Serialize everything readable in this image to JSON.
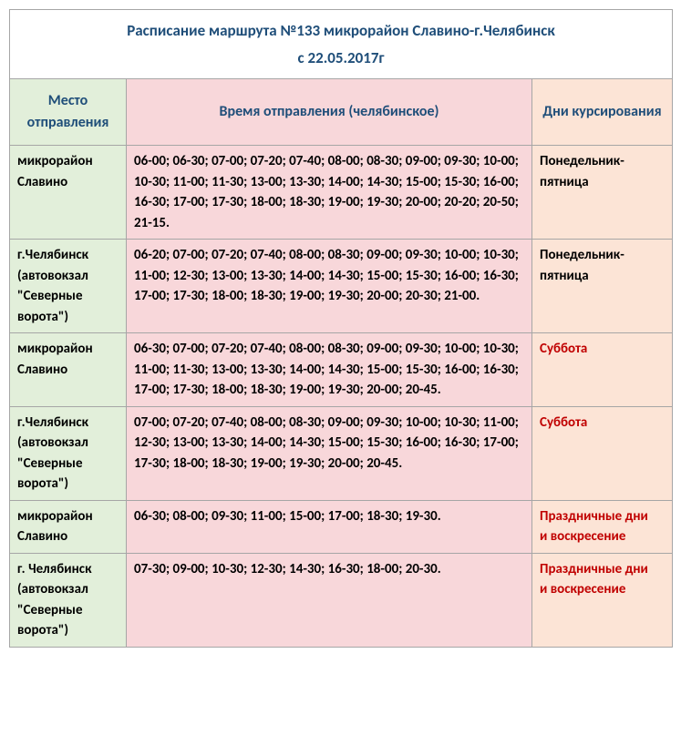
{
  "title": "Расписание маршрута №133 микрорайон Славино-г.Челябинск",
  "subtitle": "с 22.05.2017г",
  "headers": {
    "place": "Место отправления",
    "times": "Время отправления (челябинское)",
    "days": "Дни курсирования"
  },
  "rows": [
    {
      "place": "микрорайон Славино",
      "times": "06-00; 06-30; 07-00; 07-20; 07-40; 08-00; 08-30; 09-00; 09-30; 10-00; 10-30; 11-00; 11-30; 13-00; 13-30; 14-00; 14-30; 15-00; 15-30; 16-00; 16-30; 17-00; 17-30; 18-00; 18-30; 19-00; 19-30; 20-00; 20-20; 20-50; 21-15.",
      "days": "Понедельник-пятница",
      "days_red": false
    },
    {
      "place": "г.Челябинск (автовокзал \"Северные ворота\")",
      "times": "06-20; 07-00; 07-20; 07-40; 08-00; 08-30; 09-00; 09-30; 10-00; 10-30; 11-00; 12-30; 13-00; 13-30; 14-00; 14-30; 15-00; 15-30; 16-00; 16-30; 17-00; 17-30; 18-00; 18-30; 19-00; 19-30; 20-00; 20-30; 21-00.",
      "days": "Понедельник-пятница",
      "days_red": false
    },
    {
      "place": "микрорайон Славино",
      "times": "06-30; 07-00; 07-20; 07-40; 08-00; 08-30; 09-00; 09-30; 10-00; 10-30; 11-00; 11-30; 13-00; 13-30; 14-00; 14-30; 15-00; 15-30; 16-00; 16-30; 17-00; 17-30; 18-00; 18-30; 19-00; 19-30; 20-00; 20-45.",
      "days": "Суббота",
      "days_red": true
    },
    {
      "place": "г.Челябинск (автовокзал \"Северные ворота\")",
      "times": "07-00; 07-20; 07-40; 08-00; 08-30; 09-00; 09-30; 10-00; 10-30; 11-00; 12-30; 13-00; 13-30; 14-00; 14-30; 15-00; 15-30; 16-00; 16-30; 17-00; 17-30; 18-00; 18-30; 19-00; 19-30; 20-00; 20-45.",
      "days": "Суббота",
      "days_red": true
    },
    {
      "place": "микрорайон Славино",
      "times": "06-30; 08-00; 09-30; 11-00; 15-00; 17-00; 18-30; 19-30.",
      "days": "Праздничные дни и воскресение",
      "days_red": true
    },
    {
      "place": "г. Челябинск (автовокзал \"Северные ворота\")",
      "times": "07-30; 09-00; 10-30; 12-30; 14-30; 16-30; 18-00;  20-30.",
      "days": "Праздничные дни и воскресение",
      "days_red": true
    }
  ],
  "colors": {
    "header_text": "#1f4e79",
    "green_bg": "#e2efda",
    "pink_bg": "#f8d7da",
    "orange_bg": "#fce4d6",
    "border": "#a6a6a6",
    "red_text": "#c00000",
    "black_text": "#000000"
  }
}
